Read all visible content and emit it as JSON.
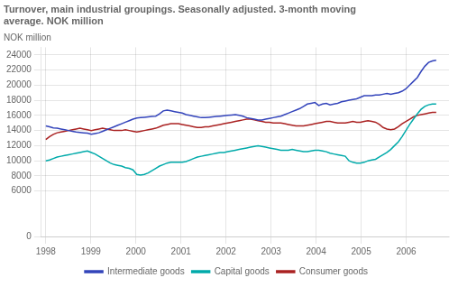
{
  "chart_data": {
    "type": "line",
    "title": "Turnover, main industrial groupings. Seasonally adjusted. 3-month moving\naverage. NOK million",
    "ylabel": "NOK million",
    "x": [
      1998,
      1998.0841,
      1998.1683,
      1998.2524,
      1998.3366,
      1998.4207,
      1998.5049,
      1998.589,
      1998.6731,
      1998.7573,
      1998.8414,
      1998.9256,
      1999.0097,
      1999.0939,
      1999.178,
      1999.2621,
      1999.3463,
      1999.4304,
      1999.5146,
      1999.5987,
      1999.6828,
      1999.767,
      1999.8511,
      1999.9353,
      2000.0194,
      2000.1036,
      2000.1877,
      2000.2718,
      2000.356,
      2000.4401,
      2000.5243,
      2000.6084,
      2000.6926,
      2000.7767,
      2000.8608,
      2000.945,
      2001.0291,
      2001.1133,
      2001.1974,
      2001.2816,
      2001.3657,
      2001.4498,
      2001.534,
      2001.6181,
      2001.7023,
      2001.7864,
      2001.8706,
      2001.9547,
      2002.0388,
      2002.123,
      2002.2071,
      2002.2913,
      2002.3754,
      2002.4595,
      2002.5437,
      2002.6278,
      2002.712,
      2002.7961,
      2002.8803,
      2002.9644,
      2003.0485,
      2003.1327,
      2003.2168,
      2003.301,
      2003.3851,
      2003.4693,
      2003.5534,
      2003.6375,
      2003.7217,
      2003.8058,
      2003.89,
      2003.9741,
      2004.0583,
      2004.1424,
      2004.2265,
      2004.3107,
      2004.3948,
      2004.479,
      2004.5631,
      2004.6472,
      2004.7314,
      2004.8155,
      2004.8997,
      2004.9838,
      2005.068,
      2005.1521,
      2005.2362,
      2005.3204,
      2005.4045,
      2005.4887,
      2005.5728,
      2005.657,
      2005.7411,
      2005.8252,
      2005.9094,
      2005.9935,
      2006.0777,
      2006.1618,
      2006.246,
      2006.3301,
      2006.4142,
      2006.4984,
      2006.5825,
      2006.6667
    ],
    "xlim": [
      1997.9,
      2006.95
    ],
    "xticks": [
      1998,
      1999,
      2000,
      2001,
      2002,
      2003,
      2004,
      2005,
      2006
    ],
    "ylim": [
      0,
      25000
    ],
    "yticks": [
      0,
      6000,
      8000,
      10000,
      12000,
      14000,
      16000,
      18000,
      20000,
      22000,
      24000
    ],
    "grid": true,
    "legend": "bottom",
    "series": [
      {
        "name": "Intermediate goods",
        "color": "#3344bb",
        "values": [
          14600,
          14500,
          14350,
          14300,
          14200,
          14100,
          14000,
          13900,
          13800,
          13750,
          13700,
          13650,
          13500,
          13600,
          13700,
          13900,
          14100,
          14300,
          14500,
          14700,
          14900,
          15100,
          15300,
          15500,
          15650,
          15700,
          15750,
          15800,
          15850,
          15900,
          16200,
          16600,
          16700,
          16600,
          16500,
          16400,
          16300,
          16100,
          16000,
          15900,
          15800,
          15700,
          15700,
          15750,
          15800,
          15850,
          15900,
          15950,
          16000,
          16050,
          16100,
          16000,
          15900,
          15700,
          15600,
          15500,
          15400,
          15400,
          15500,
          15600,
          15700,
          15800,
          15900,
          16100,
          16300,
          16500,
          16700,
          16900,
          17200,
          17500,
          17600,
          17700,
          17300,
          17500,
          17600,
          17400,
          17500,
          17600,
          17800,
          17900,
          18000,
          18100,
          18200,
          18400,
          18600,
          18600,
          18600,
          18700,
          18700,
          18800,
          18900,
          18800,
          18900,
          19000,
          19200,
          19500,
          20000,
          20500,
          21000,
          21800,
          22500,
          23000,
          23200,
          23300
        ]
      },
      {
        "name": "Capital goods",
        "color": "#00aaaa",
        "values": [
          10000,
          10100,
          10300,
          10500,
          10600,
          10700,
          10800,
          10900,
          11000,
          11100,
          11200,
          11300,
          11100,
          10900,
          10600,
          10300,
          10000,
          9700,
          9500,
          9400,
          9300,
          9100,
          9000,
          8800,
          8200,
          8100,
          8200,
          8400,
          8700,
          9000,
          9300,
          9500,
          9700,
          9800,
          9800,
          9800,
          9800,
          9900,
          10100,
          10300,
          10500,
          10600,
          10700,
          10800,
          10900,
          11000,
          11100,
          11100,
          11200,
          11300,
          11400,
          11500,
          11600,
          11700,
          11800,
          11900,
          12000,
          11900,
          11800,
          11700,
          11600,
          11500,
          11400,
          11400,
          11400,
          11500,
          11400,
          11300,
          11200,
          11200,
          11300,
          11400,
          11400,
          11300,
          11200,
          11000,
          10900,
          10800,
          10700,
          10600,
          10000,
          9800,
          9700,
          9700,
          9800,
          10000,
          10100,
          10200,
          10500,
          10800,
          11100,
          11500,
          12000,
          12500,
          13200,
          14000,
          14800,
          15500,
          16200,
          16800,
          17200,
          17400,
          17500,
          17500
        ]
      },
      {
        "name": "Consumer goods",
        "color": "#aa2222",
        "values": [
          12800,
          13200,
          13500,
          13700,
          13800,
          13900,
          14000,
          14100,
          14200,
          14300,
          14200,
          14100,
          14000,
          14100,
          14200,
          14300,
          14200,
          14100,
          14000,
          14000,
          14000,
          14100,
          14000,
          13900,
          13800,
          13900,
          14000,
          14100,
          14200,
          14300,
          14500,
          14700,
          14800,
          14900,
          14900,
          14900,
          14800,
          14700,
          14600,
          14500,
          14400,
          14400,
          14500,
          14500,
          14600,
          14700,
          14800,
          14900,
          15000,
          15100,
          15200,
          15300,
          15400,
          15500,
          15500,
          15400,
          15300,
          15200,
          15100,
          15100,
          15000,
          15000,
          15000,
          14900,
          14800,
          14700,
          14600,
          14600,
          14600,
          14700,
          14800,
          14900,
          15000,
          15100,
          15200,
          15200,
          15100,
          15000,
          15000,
          15000,
          15100,
          15200,
          15100,
          15100,
          15200,
          15300,
          15200,
          15100,
          14800,
          14400,
          14200,
          14100,
          14200,
          14500,
          14900,
          15200,
          15500,
          15800,
          16000,
          16100,
          16200,
          16300,
          16400,
          16400
        ]
      }
    ]
  }
}
